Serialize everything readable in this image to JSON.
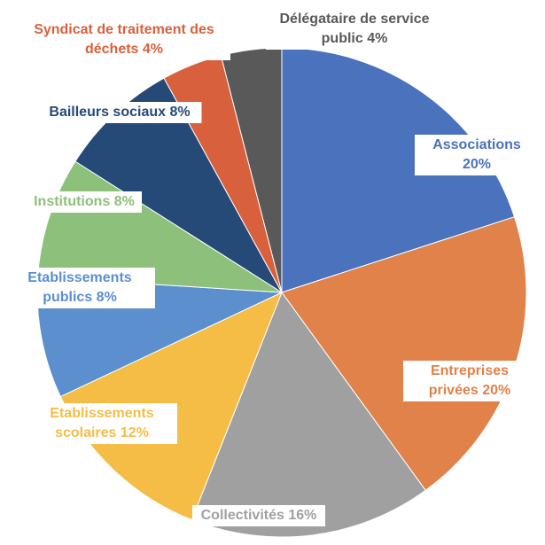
{
  "chart_data": {
    "type": "pie",
    "categories": [
      "Associations",
      "Entreprises privées",
      "Collectivités",
      "Etablissements scolaires",
      "Etablissements publics",
      "Institutions",
      "Bailleurs sociaux",
      "Syndicat de traitement des déchets",
      "Délégataire de service public"
    ],
    "values": [
      20,
      20,
      16,
      12,
      8,
      8,
      8,
      4,
      4
    ],
    "value_labels": [
      "20%",
      "20%",
      "16%",
      "12%",
      "8%",
      "8%",
      "8%",
      "4%",
      "4%"
    ],
    "colors": [
      "#4a72bd",
      "#e0824a",
      "#a0a0a0",
      "#f5bd45",
      "#5b8fce",
      "#8dc07a",
      "#264a77",
      "#d9603c",
      "#595959"
    ]
  }
}
